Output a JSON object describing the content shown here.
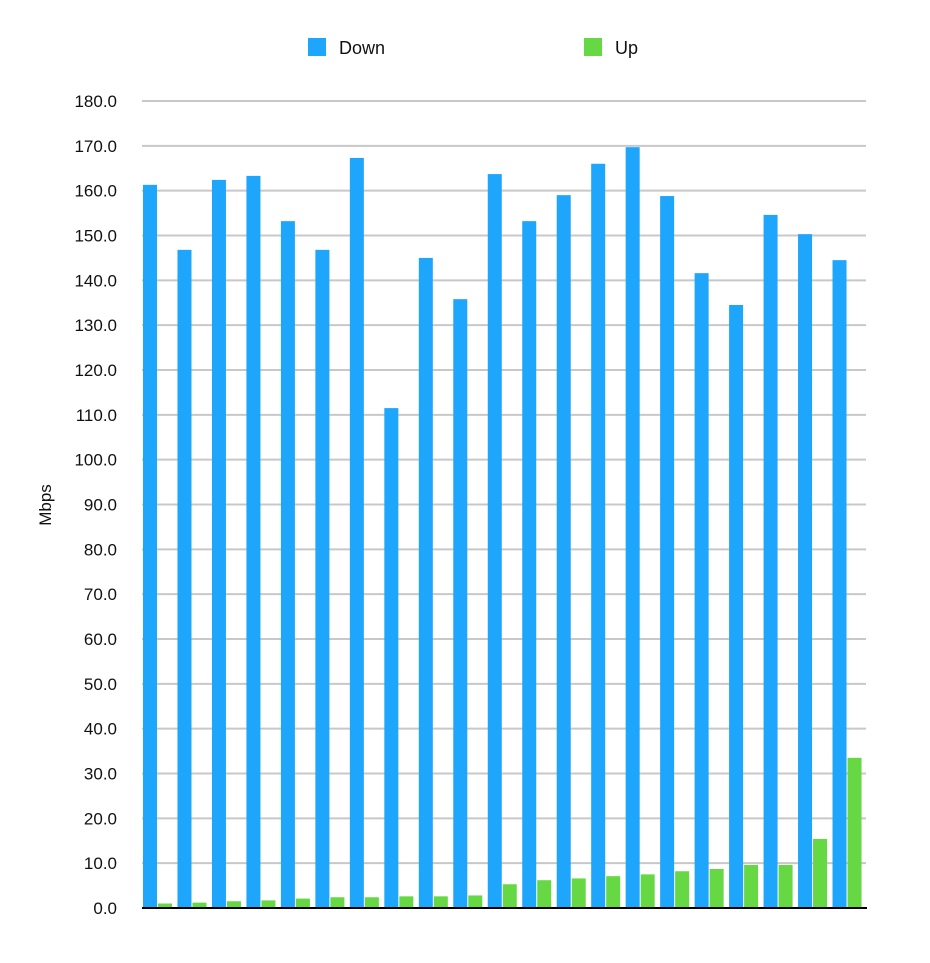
{
  "chart_data": {
    "type": "bar",
    "title": "",
    "xlabel": "",
    "ylabel": "Mbps",
    "ylim": [
      0,
      180
    ],
    "yticks": [
      "0.0",
      "10.0",
      "20.0",
      "30.0",
      "40.0",
      "50.0",
      "60.0",
      "70.0",
      "80.0",
      "90.0",
      "100.0",
      "110.0",
      "120.0",
      "130.0",
      "140.0",
      "150.0",
      "160.0",
      "170.0",
      "180.0"
    ],
    "grid": true,
    "legend_position": "top",
    "categories": [
      "",
      "",
      "",
      "",
      "",
      "",
      "",
      "",
      "",
      "",
      "",
      "",
      "",
      "",
      "",
      "",
      "",
      "",
      "",
      "",
      ""
    ],
    "series": [
      {
        "name": "Down",
        "color": "#1ea5fc",
        "values": [
          161.3,
          146.8,
          162.4,
          163.3,
          153.2,
          146.8,
          167.3,
          111.5,
          145.0,
          135.8,
          163.7,
          153.2,
          159.0,
          166.0,
          169.7,
          158.8,
          141.6,
          134.5,
          154.6,
          150.3,
          144.5
        ]
      },
      {
        "name": "Up",
        "color": "#65d844",
        "values": [
          1.0,
          1.2,
          1.5,
          1.7,
          2.1,
          2.4,
          2.4,
          2.6,
          2.6,
          2.8,
          5.3,
          6.2,
          6.6,
          7.1,
          7.5,
          8.2,
          8.7,
          9.6,
          9.6,
          15.4,
          33.5
        ]
      }
    ]
  }
}
